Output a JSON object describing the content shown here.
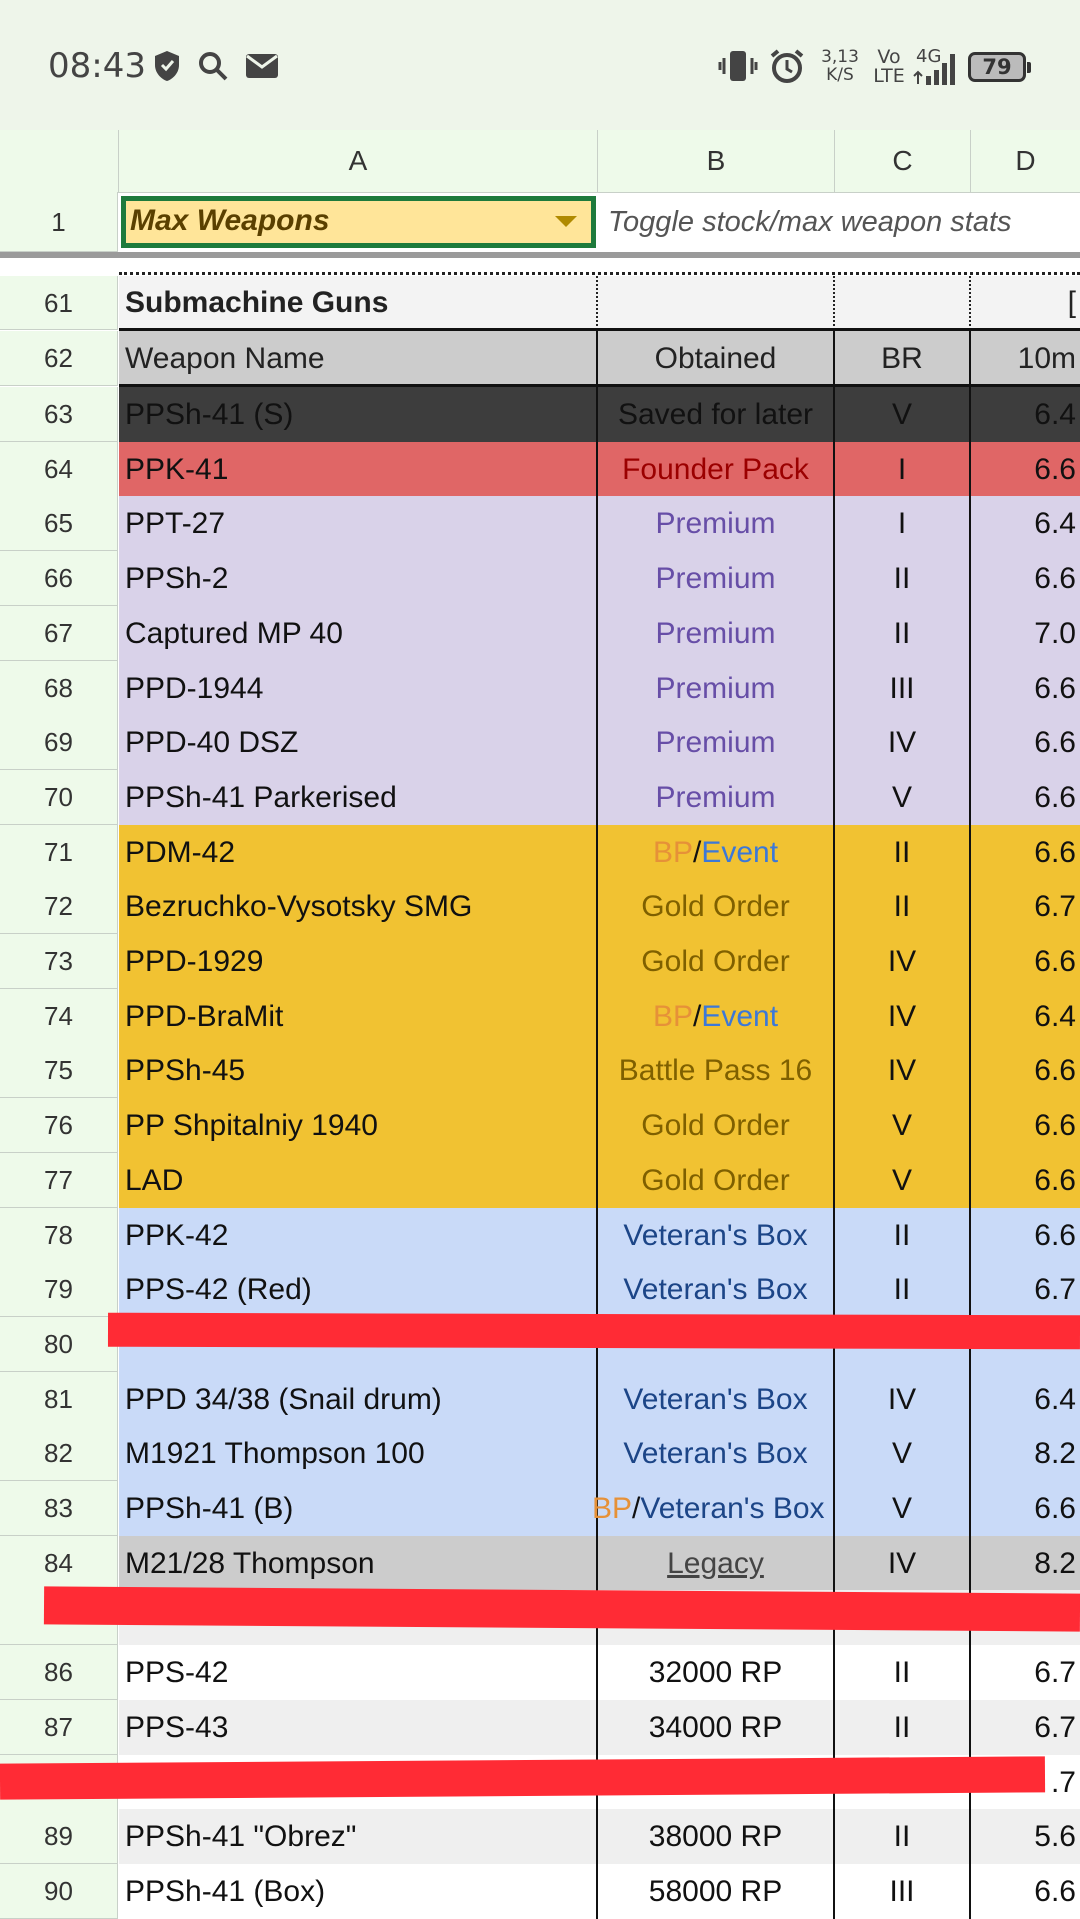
{
  "status_bar": {
    "time": "08:43",
    "net_speed_value": "3,13",
    "net_speed_unit": "K/S",
    "volte_top": "Vo",
    "volte_bottom": "LTE",
    "network": "4G",
    "battery": "79",
    "icons": [
      "shield-icon",
      "search-icon",
      "mail-icon",
      "vibrate-icon",
      "alarm-icon",
      "signal-icon",
      "battery-icon"
    ]
  },
  "sheet": {
    "columns": [
      "A",
      "B",
      "C",
      "D"
    ],
    "frozen_row": {
      "num": "1",
      "dropdown_value": "Max Weapons",
      "note": "Toggle stock/max weapon stats"
    },
    "section": {
      "num": "61",
      "title": "Submachine Guns",
      "d_partial": "["
    },
    "header": {
      "num": "62",
      "name": "Weapon Name",
      "obtained": "Obtained",
      "br": "BR",
      "stat": "10m"
    },
    "rows": [
      {
        "num": "63",
        "name": "PPSh-41 (S)",
        "obtained": "Saved for later",
        "br": "V",
        "stat": "6.4"
      },
      {
        "num": "64",
        "name": "PPK-41",
        "obtained": "Founder Pack",
        "br": "I",
        "stat": "6.6"
      },
      {
        "num": "65",
        "name": "PPT-27",
        "obtained": "Premium",
        "br": "I",
        "stat": "6.4"
      },
      {
        "num": "66",
        "name": "PPSh-2",
        "obtained": "Premium",
        "br": "II",
        "stat": "6.6"
      },
      {
        "num": "67",
        "name": "Captured MP 40",
        "obtained": "Premium",
        "br": "II",
        "stat": "7.0"
      },
      {
        "num": "68",
        "name": "PPD-1944",
        "obtained": "Premium",
        "br": "III",
        "stat": "6.6"
      },
      {
        "num": "69",
        "name": "PPD-40 DSZ",
        "obtained": "Premium",
        "br": "IV",
        "stat": "6.6"
      },
      {
        "num": "70",
        "name": "PPSh-41 Parkerised",
        "obtained": "Premium",
        "br": "V",
        "stat": "6.6"
      },
      {
        "num": "71",
        "name": "PDM-42",
        "obtained_parts": [
          "BP",
          "/",
          "Event"
        ],
        "br": "II",
        "stat": "6.6"
      },
      {
        "num": "72",
        "name": "Bezruchko-Vysotsky SMG",
        "obtained": "Gold Order",
        "br": "II",
        "stat": "6.7"
      },
      {
        "num": "73",
        "name": "PPD-1929",
        "obtained": "Gold Order",
        "br": "IV",
        "stat": "6.6"
      },
      {
        "num": "74",
        "name": "PPD-BraMit",
        "obtained_parts": [
          "BP",
          "/",
          "Event"
        ],
        "br": "IV",
        "stat": "6.4"
      },
      {
        "num": "75",
        "name": "PPSh-45",
        "obtained": "Battle Pass 16",
        "br": "IV",
        "stat": "6.6"
      },
      {
        "num": "76",
        "name": "PP Shpitalniy 1940",
        "obtained": "Gold Order",
        "br": "V",
        "stat": "6.6"
      },
      {
        "num": "77",
        "name": "LAD",
        "obtained": "Gold Order",
        "br": "V",
        "stat": "6.6"
      },
      {
        "num": "78",
        "name": "PPK-42",
        "obtained": "Veteran's Box",
        "br": "II",
        "stat": "6.6"
      },
      {
        "num": "79",
        "name": "PPS-42 (Red)",
        "obtained": "Veteran's Box",
        "br": "II",
        "stat": "6.7"
      },
      {
        "num": "80",
        "name": "",
        "obtained": "",
        "br": "",
        "stat": ""
      },
      {
        "num": "81",
        "name": "PPD 34/38 (Snail drum)",
        "obtained": "Veteran's Box",
        "br": "IV",
        "stat": "6.4"
      },
      {
        "num": "82",
        "name": "M1921 Thompson 100",
        "obtained": "Veteran's Box",
        "br": "V",
        "stat": "8.2"
      },
      {
        "num": "83",
        "name": "PPSh-41 (B)",
        "obtained_parts": [
          "BP",
          "/",
          "Veteran's Box"
        ],
        "br": "V",
        "stat": "6.6"
      },
      {
        "num": "84",
        "name": "M21/28 Thompson",
        "obtained": "Legacy",
        "br": "IV",
        "stat": "8.2"
      },
      {
        "num": "",
        "name": "",
        "obtained": "",
        "br": "",
        "stat": ""
      },
      {
        "num": "86",
        "name": "PPS-42",
        "obtained": "32000 RP",
        "br": "II",
        "stat": "6.7"
      },
      {
        "num": "87",
        "name": "PPS-43",
        "obtained": "34000 RP",
        "br": "II",
        "stat": "6.7"
      },
      {
        "num": "",
        "name": "",
        "obtained": "",
        "br": "",
        "stat": ".7"
      },
      {
        "num": "89",
        "name": "PPSh-41 \"Obrez\"",
        "obtained": "38000 RP",
        "br": "II",
        "stat": "5.6"
      },
      {
        "num": "90",
        "name": "PPSh-41 (Box)",
        "obtained": "58000 RP",
        "br": "III",
        "stat": "6.6"
      }
    ]
  },
  "colors": {
    "saved": "#3d3d3d",
    "founder": "#e06666",
    "premium": "#d9d2e9",
    "gold": "#f1c232",
    "veteran": "#c9daf8",
    "legacy": "#cccccc",
    "rp_alt": "#efefef",
    "dropdown": "#ffe599",
    "dropdown_border": "#1e7a3c",
    "redaction": "#ff2b35"
  }
}
